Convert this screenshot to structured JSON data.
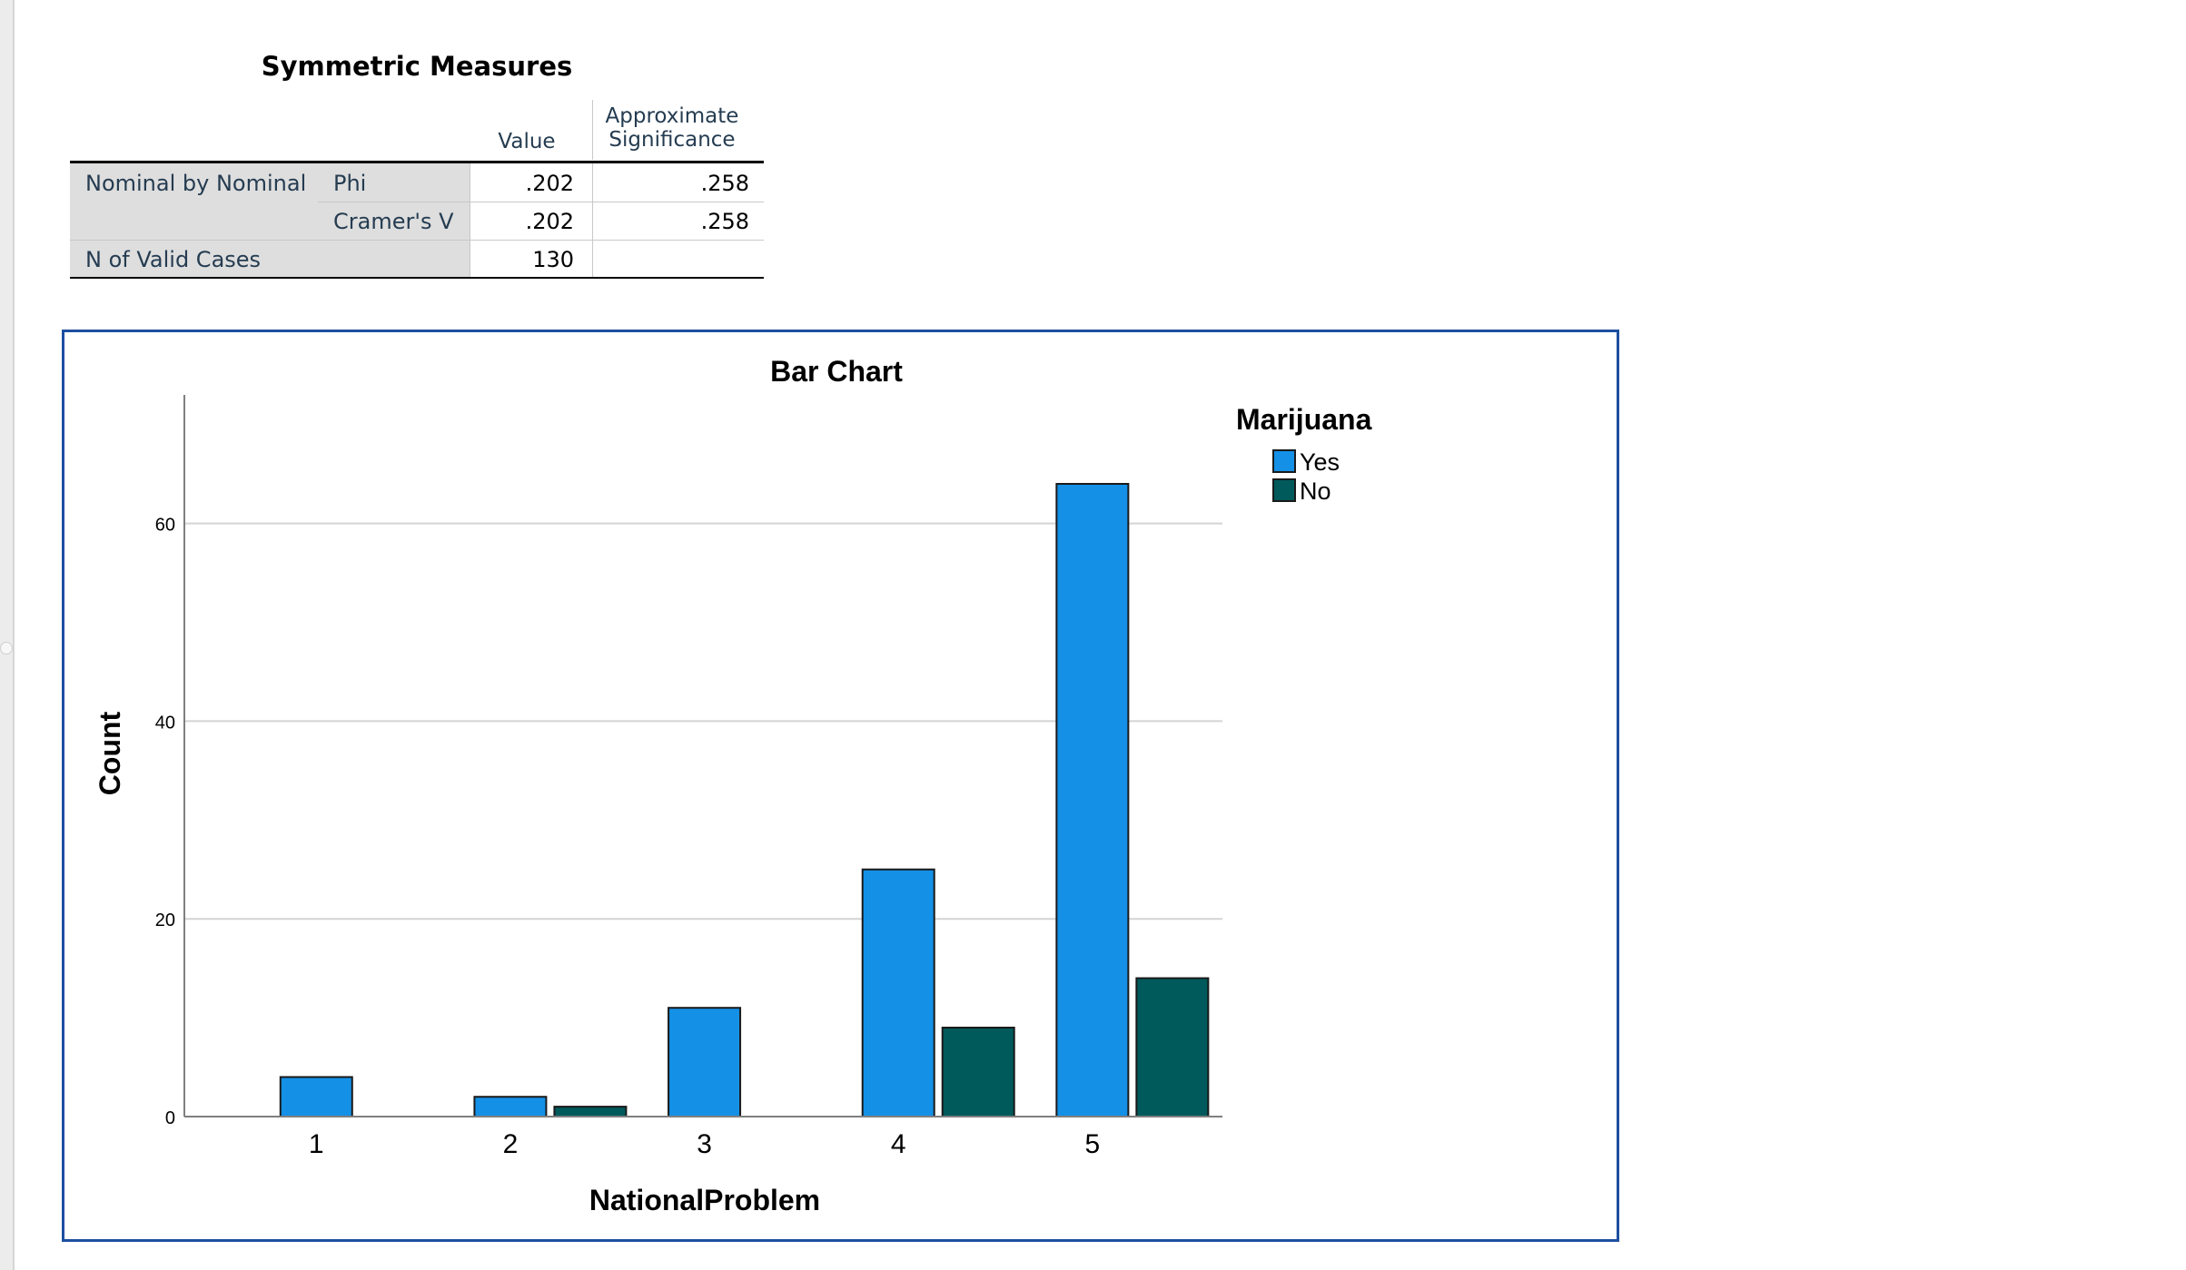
{
  "table": {
    "title": "Symmetric Measures",
    "col_value": "Value",
    "col_sig_line1": "Approximate",
    "col_sig_line2": "Significance",
    "group_label": "Nominal by Nominal",
    "rows": [
      {
        "label": "Phi",
        "value": ".202",
        "significance": ".258"
      },
      {
        "label": "Cramer's V",
        "value": ".202",
        "significance": ".258"
      }
    ],
    "valid_label": "N of Valid Cases",
    "valid_value": "130"
  },
  "chart_data": {
    "type": "bar",
    "title": "Bar Chart",
    "xlabel": "NationalProblem",
    "ylabel": "Count",
    "categories": [
      "1",
      "2",
      "3",
      "4",
      "5"
    ],
    "series": [
      {
        "name": "Yes",
        "color": "#1490e6",
        "values": [
          4,
          2,
          11,
          25,
          64
        ]
      },
      {
        "name": "No",
        "color": "#005a5b",
        "values": [
          0,
          1,
          0,
          9,
          14
        ]
      }
    ],
    "ylim": [
      0,
      73
    ],
    "yticks": [
      "0",
      "20",
      "40",
      "60"
    ],
    "grid": true,
    "legend_title": "Marijuana",
    "legend_position": "top-right"
  }
}
